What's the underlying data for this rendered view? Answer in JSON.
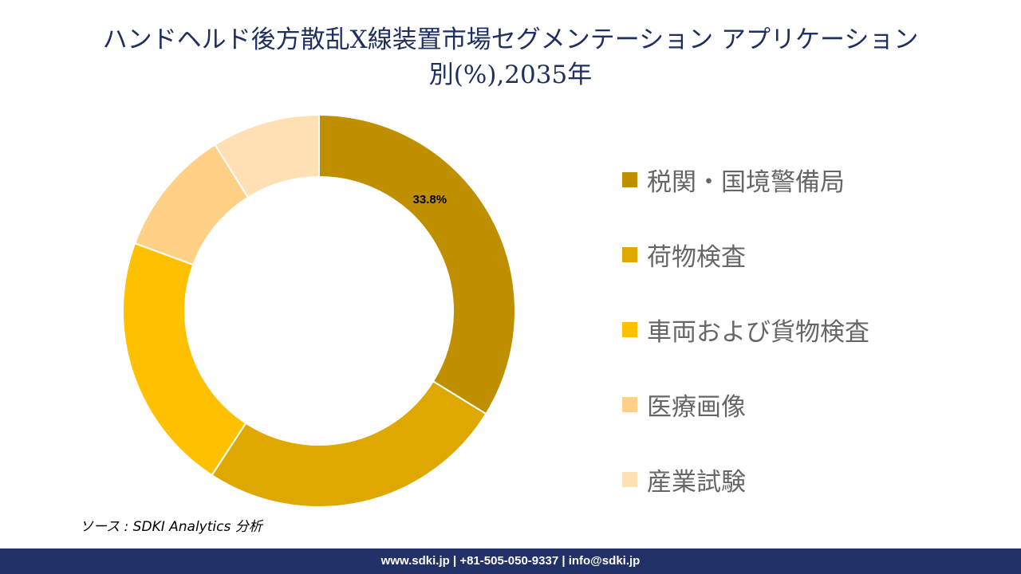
{
  "title": {
    "line1": "ハンドヘルド後方散乱X線装置市場セグメンテーション アプリケーション",
    "line2": "別(%),2035年"
  },
  "chart_data": {
    "type": "pie",
    "subtype": "donut",
    "title": "ハンドヘルド後方散乱X線装置市場セグメンテーション アプリケーション別(%),2035年",
    "categories": [
      "税関・国境警備局",
      "荷物検査",
      "車両および貨物検査",
      "医療画像",
      "産業試験"
    ],
    "values": [
      33.8,
      25.4,
      21.4,
      10.5,
      8.9
    ],
    "colors": [
      "#BF8F00",
      "#DFA800",
      "#FFC000",
      "#FFD086",
      "#FFE0B4"
    ],
    "data_labels": [
      "33.8%",
      null,
      null,
      null,
      null
    ],
    "legend_position": "right"
  },
  "source": "ソース : SDKI Analytics 分析",
  "footer": "www.sdki.jp | +81-505-050-9337 | info@sdki.jp"
}
